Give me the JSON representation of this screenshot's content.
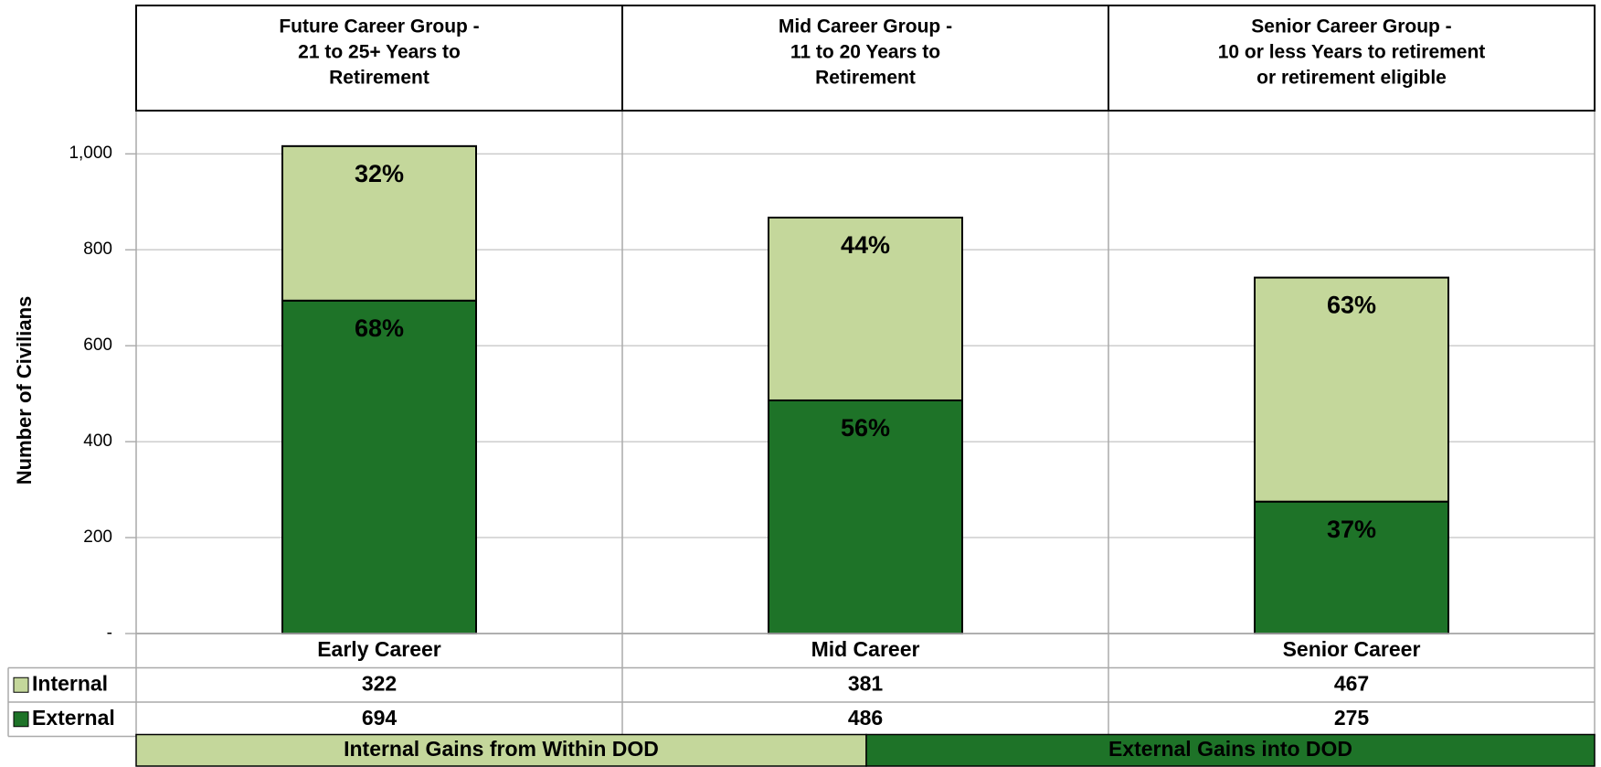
{
  "chart_data": {
    "type": "stacked_bar",
    "y_axis_label": "Number of Civilians",
    "group_headers": [
      [
        "Future Career Group -",
        "21 to 25+ Years to",
        "Retirement"
      ],
      [
        "Mid Career Group -",
        "11 to 20 Years to",
        "Retirement"
      ],
      [
        "Senior Career Group -",
        "10 or less Years to retirement",
        "or retirement eligible"
      ]
    ],
    "categories": [
      "Early Career",
      "Mid Career",
      "Senior Career"
    ],
    "series": [
      {
        "name": "External",
        "color": "#1e7328",
        "label_color": "#ffffff",
        "values": [
          694,
          486,
          275
        ],
        "share_labels": [
          "68%",
          "56%",
          "37%"
        ]
      },
      {
        "name": "Internal",
        "color": "#c4d79b",
        "label_color": "#000000",
        "values": [
          322,
          381,
          467
        ],
        "share_labels": [
          "32%",
          "44%",
          "63%"
        ]
      }
    ],
    "table_row_order": [
      1,
      0
    ],
    "footer_bands": [
      {
        "text": "Internal Gains from Within DOD",
        "color": "#c4d79b",
        "text_color": "#000000"
      },
      {
        "text": "External Gains into DOD",
        "color": "#1e7328",
        "text_color": "#ffffff"
      }
    ],
    "ylim": [
      0,
      1090
    ],
    "yticks": [
      {
        "value": 0,
        "label": "-"
      },
      200,
      400,
      600,
      800,
      {
        "value": 1000,
        "label": "1,000"
      }
    ],
    "grid": true
  }
}
